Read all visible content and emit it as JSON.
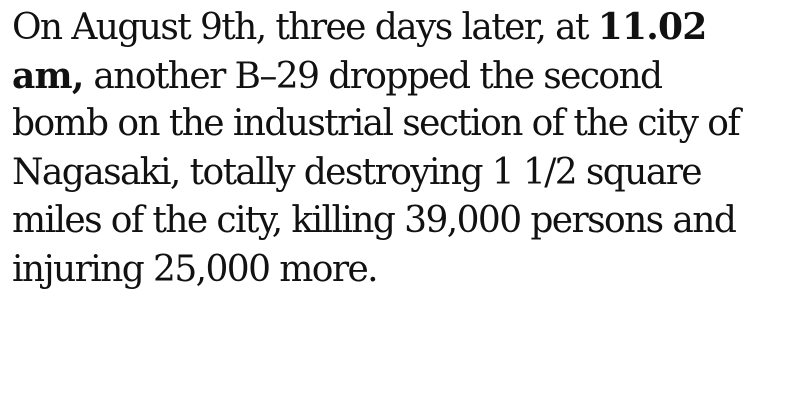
{
  "paragraph": {
    "lines": [
      {
        "segments": [
          {
            "text": "On August 9th, three days later, at ",
            "bold": false
          },
          {
            "text": "11.02",
            "bold": true
          }
        ]
      },
      {
        "segments": [
          {
            "text": "am,",
            "bold": true
          },
          {
            "text": " another B–29 dropped the second",
            "bold": false
          }
        ]
      },
      {
        "segments": [
          {
            "text": "bomb on the industrial section of the city of",
            "bold": false
          }
        ]
      },
      {
        "segments": [
          {
            "text": "Nagasaki, totally destroying 1 1/2 square",
            "bold": false
          }
        ]
      },
      {
        "segments": [
          {
            "text": "miles of the city, killing 39,000 persons and",
            "bold": false
          }
        ]
      },
      {
        "segments": [
          {
            "text": "injuring 25,000 more.",
            "bold": false
          }
        ]
      }
    ]
  }
}
